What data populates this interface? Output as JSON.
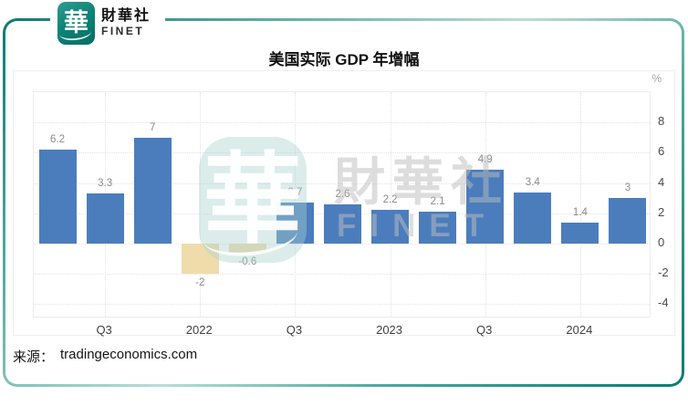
{
  "logo": {
    "glyph": "華",
    "name_zh": "財華社",
    "name_en": "FINET"
  },
  "watermark": {
    "glyph": "華",
    "text_zh": "財華社",
    "text_en": "FINET"
  },
  "source": {
    "label": "来源：",
    "url": "tradingeconomics.com"
  },
  "chart_data": {
    "type": "bar",
    "title": "美国实际 GDP 年增幅",
    "unit": "%",
    "values": [
      6.2,
      3.3,
      7,
      -2,
      -0.6,
      2.7,
      2.6,
      2.2,
      2.1,
      4.9,
      3.4,
      1.4,
      3
    ],
    "x_ticks": [
      {
        "index": 1,
        "label": "Q3"
      },
      {
        "index": 3,
        "label": "2022"
      },
      {
        "index": 5,
        "label": "Q3"
      },
      {
        "index": 7,
        "label": "2023"
      },
      {
        "index": 9,
        "label": "Q3"
      },
      {
        "index": 11,
        "label": "2024"
      }
    ],
    "y_ticks": [
      8,
      6,
      4,
      2,
      0,
      -2,
      -4
    ],
    "ylim": [
      -4.9,
      10
    ],
    "grid": true,
    "legend_position": "none",
    "colors": {
      "positive": "#4b7dbd",
      "negative": "#f0dcab"
    },
    "value_label_color": "#8a8a8a"
  }
}
